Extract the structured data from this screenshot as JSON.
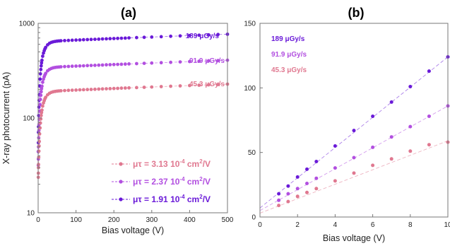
{
  "colors": {
    "s189": "#6a1ad8",
    "s919": "#b24fe0",
    "s453": "#e07890",
    "axis": "#777777",
    "text": "#222222"
  },
  "chart_data": [
    {
      "panel": "(a)",
      "type": "scatter",
      "title": "(a)",
      "xlabel": "Bias voltage (V)",
      "ylabel": "X-ray photocurrent (pA)",
      "xlim": [
        0,
        500
      ],
      "ylim": [
        10,
        1000
      ],
      "yscale": "log",
      "xticks": [
        "0",
        "100",
        "200",
        "300",
        "400",
        "500"
      ],
      "yticks": [
        "10",
        "100",
        "1000"
      ],
      "grid": false,
      "series_labels": [
        {
          "text": "189 μGy/s",
          "series": "s189"
        },
        {
          "text": "91.9 μGy/s",
          "series": "s919"
        },
        {
          "text": "45.3 μGy/s",
          "series": "s453"
        }
      ],
      "legend": {
        "placement": "bottom-right",
        "entries": [
          {
            "series": "s453",
            "prefix": "μτ = 3.13 10",
            "exp": "-4",
            "mid": " cm",
            "exp2": "2",
            "suffix": "/V"
          },
          {
            "series": "s919",
            "prefix": "μτ = 2.37 10",
            "exp": "-4",
            "mid": " cm",
            "exp2": "2",
            "suffix": "/V"
          },
          {
            "series": "s189",
            "prefix": "μτ = 1.91 10",
            "exp": "-4",
            "mid": " cm",
            "exp2": "2",
            "suffix": "/V"
          }
        ]
      },
      "series": [
        {
          "key": "s189",
          "isat": 640,
          "k": 0.1,
          "ilow": 28,
          "fit": true
        },
        {
          "key": "s919",
          "isat": 340,
          "k": 0.1,
          "ilow": 24,
          "fit": true
        },
        {
          "key": "s453",
          "isat": 190,
          "k": 0.1,
          "ilow": 20,
          "fit": true
        }
      ],
      "x_points": [
        0.3,
        0.5,
        0.8,
        1,
        1.5,
        2,
        2.5,
        3,
        4,
        5,
        6,
        7,
        8,
        9,
        10,
        12,
        14,
        16,
        18,
        20,
        25,
        30,
        35,
        40,
        45,
        50,
        55,
        60,
        70,
        80,
        90,
        100,
        110,
        120,
        130,
        140,
        150,
        160,
        170,
        180,
        190,
        200,
        210,
        220,
        230,
        240,
        260,
        280,
        300,
        325,
        350,
        375,
        400,
        425,
        450,
        475,
        500
      ]
    },
    {
      "panel": "(b)",
      "type": "scatter",
      "title": "(b)",
      "xlabel": "Bias voltage (V)",
      "ylabel": "",
      "xlim": [
        0,
        10
      ],
      "ylim": [
        0,
        150
      ],
      "xticks": [
        "0",
        "2",
        "4",
        "6",
        "8",
        "10"
      ],
      "yticks": [
        "0",
        "50",
        "100",
        "150"
      ],
      "grid": false,
      "series_labels": [
        {
          "text": "189 μGy/s",
          "series": "s189"
        },
        {
          "text": "91.9 μGy/s",
          "series": "s919"
        },
        {
          "text": "45.3 μGy/s",
          "series": "s453"
        }
      ],
      "series": [
        {
          "key": "s189",
          "x": [
            1,
            1.5,
            2,
            2.5,
            3,
            4,
            5,
            6,
            7,
            8,
            9,
            10
          ],
          "y": [
            18,
            24,
            31,
            37,
            43,
            55,
            67,
            78,
            89,
            101,
            113,
            124
          ],
          "fit": [
            0,
            7,
            10,
            124
          ]
        },
        {
          "key": "s919",
          "x": [
            1,
            1.5,
            2,
            2.5,
            3,
            4,
            5,
            6,
            7,
            8,
            9,
            10
          ],
          "y": [
            13,
            18,
            22,
            26,
            30,
            38,
            46,
            54,
            62,
            70,
            78,
            86
          ],
          "fit": [
            0,
            5,
            10,
            86
          ]
        },
        {
          "key": "s453",
          "x": [
            1,
            1.5,
            2,
            2.5,
            3,
            4,
            5,
            6,
            7,
            8,
            9,
            10
          ],
          "y": [
            9,
            12,
            16,
            19,
            22,
            28,
            34,
            40,
            45,
            51,
            56,
            58
          ],
          "fit": [
            0,
            3,
            10,
            59
          ]
        }
      ]
    }
  ]
}
